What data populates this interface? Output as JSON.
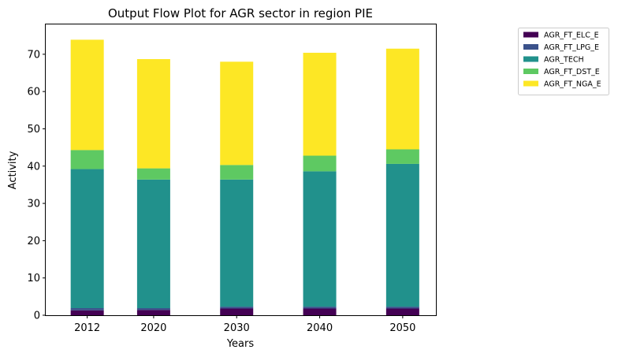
{
  "chart_data": {
    "type": "bar",
    "stacked": true,
    "title": "Output Flow Plot for AGR sector in region PIE",
    "xlabel": "Years",
    "ylabel": "Activity",
    "categories": [
      "2012",
      "2020",
      "2030",
      "2040",
      "2050"
    ],
    "x": [
      2012,
      2020,
      2030,
      2040,
      2050
    ],
    "xlim": [
      2007,
      2054
    ],
    "ylim": [
      0,
      78
    ],
    "yticks": [
      0,
      10,
      20,
      30,
      40,
      50,
      60,
      70
    ],
    "grid": false,
    "legend_placement": "outside-top-right",
    "series": [
      {
        "name": "AGR_FT_ELC_E",
        "color": "#440154",
        "values": [
          1.3,
          1.4,
          1.8,
          1.8,
          1.8
        ]
      },
      {
        "name": "AGR_FT_LPG_E",
        "color": "#3b528b",
        "values": [
          0.6,
          0.5,
          0.5,
          0.5,
          0.5
        ]
      },
      {
        "name": "AGR_TECH",
        "color": "#21918c",
        "values": [
          37.3,
          34.5,
          34.1,
          36.3,
          38.3
        ]
      },
      {
        "name": "AGR_FT_DST_E",
        "color": "#5ec962",
        "values": [
          5.1,
          3.0,
          3.9,
          4.2,
          3.9
        ]
      },
      {
        "name": "AGR_FT_NGA_E",
        "color": "#fde725",
        "values": [
          29.6,
          29.3,
          27.7,
          27.6,
          27.0
        ]
      }
    ]
  }
}
